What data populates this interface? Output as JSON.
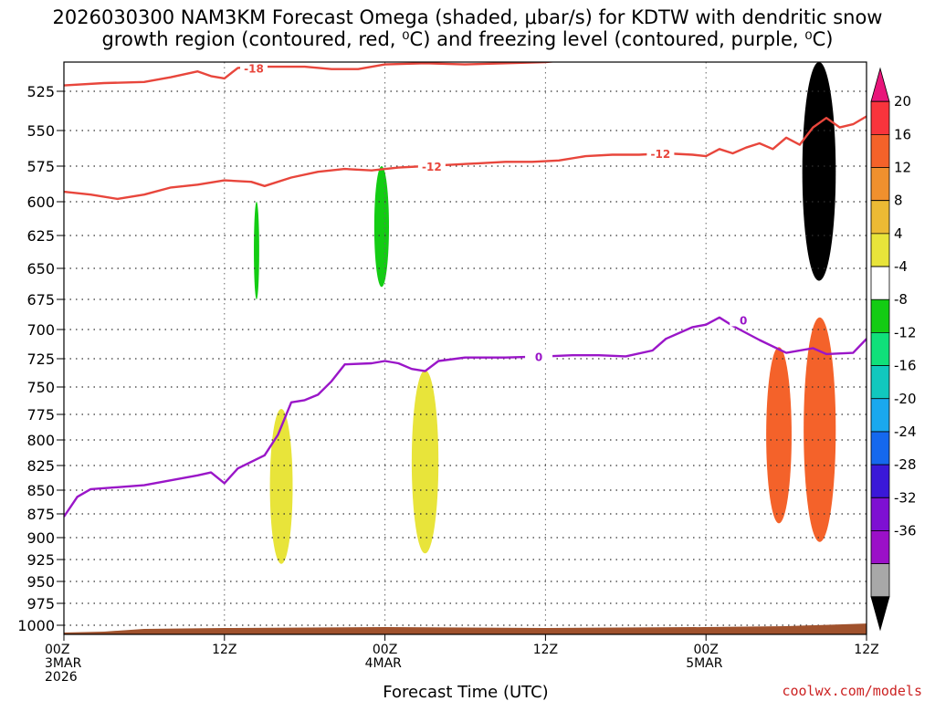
{
  "title": {
    "line1": "2026030300 NAM3KM Forecast Omega (shaded, μbar/s) for KDTW with dendritic snow",
    "line2": "growth region (contoured, red, ⁰C) and freezing level (contoured, purple, ⁰C)"
  },
  "credit": "coolwx.com/models",
  "colors": {
    "temp_contour": "#e8463c",
    "freezing_contour": "#9a16c8",
    "terrain": "#a0522d"
  },
  "chart_data": {
    "type": "heatmap",
    "xlabel": "Forecast Time (UTC)",
    "xlim": [
      0,
      60
    ],
    "x_ticks": [
      {
        "value": 0,
        "lines": [
          "00Z",
          "3MAR",
          "2026"
        ]
      },
      {
        "value": 12,
        "lines": [
          "12Z"
        ]
      },
      {
        "value": 24,
        "lines": [
          "00Z",
          "4MAR"
        ]
      },
      {
        "value": 36,
        "lines": [
          "12Z"
        ]
      },
      {
        "value": 48,
        "lines": [
          "00Z",
          "5MAR"
        ]
      },
      {
        "value": 60,
        "lines": [
          "12Z"
        ]
      }
    ],
    "y_ticks": [
      "525",
      "550",
      "575",
      "600",
      "625",
      "650",
      "675",
      "700",
      "725",
      "750",
      "775",
      "800",
      "825",
      "850",
      "875",
      "900",
      "925",
      "950",
      "975",
      "1000"
    ],
    "ylim_hpa": [
      500,
      1010
    ],
    "colorbar": {
      "labels": [
        "20",
        "16",
        "12",
        "8",
        "4",
        "-4",
        "-8",
        "-12",
        "-16",
        "-20",
        "-24",
        "-28",
        "-32",
        "-36"
      ],
      "colors": [
        "#e8157a",
        "#f8343c",
        "#f4622a",
        "#f0902e",
        "#ecba34",
        "#e8e43a",
        "#ffffff",
        "#13cc13",
        "#10e07a",
        "#11c8be",
        "#1aa8ee",
        "#1568ee",
        "#3a18d8",
        "#7e10d2",
        "#9b10c8",
        "#a8a8a8",
        "#000000"
      ]
    },
    "temp_contours": [
      {
        "label": "-18",
        "points": [
          [
            0,
            520
          ],
          [
            3,
            518
          ],
          [
            6,
            517
          ],
          [
            8,
            513
          ],
          [
            10,
            508
          ],
          [
            11,
            512
          ],
          [
            12,
            514
          ],
          [
            13,
            505
          ],
          [
            15,
            504
          ],
          [
            18,
            504
          ],
          [
            20,
            506
          ],
          [
            22,
            506
          ],
          [
            24,
            502
          ],
          [
            27,
            501
          ],
          [
            30,
            502
          ],
          [
            33,
            501
          ],
          [
            36,
            500
          ],
          [
            38,
            498
          ],
          [
            40,
            497
          ],
          [
            43,
            497
          ],
          [
            45,
            496
          ],
          [
            47,
            497
          ],
          [
            50,
            497
          ]
        ]
      },
      {
        "label": "-12",
        "points": [
          [
            0,
            593
          ],
          [
            2,
            595
          ],
          [
            4,
            598
          ],
          [
            6,
            595
          ],
          [
            8,
            590
          ],
          [
            10,
            588
          ],
          [
            12,
            585
          ],
          [
            14,
            586
          ],
          [
            15,
            589
          ],
          [
            17,
            583
          ],
          [
            19,
            579
          ],
          [
            21,
            577
          ],
          [
            23,
            578
          ],
          [
            25,
            576
          ],
          [
            27,
            575
          ],
          [
            29,
            574
          ],
          [
            31,
            573
          ],
          [
            33,
            572
          ],
          [
            35,
            572
          ],
          [
            37,
            571
          ],
          [
            39,
            568
          ],
          [
            41,
            567
          ],
          [
            43,
            567
          ],
          [
            45,
            566
          ],
          [
            47,
            567
          ],
          [
            48,
            568
          ],
          [
            49,
            563
          ],
          [
            50,
            566
          ],
          [
            51,
            562
          ],
          [
            52,
            559
          ],
          [
            53,
            563
          ],
          [
            54,
            555
          ],
          [
            55,
            560
          ],
          [
            56,
            548
          ],
          [
            57,
            542
          ],
          [
            58,
            548
          ],
          [
            59,
            546
          ],
          [
            60,
            541
          ]
        ]
      }
    ],
    "freezing_contour": {
      "label": "0",
      "points": [
        [
          0,
          878
        ],
        [
          1,
          857
        ],
        [
          2,
          849
        ],
        [
          4,
          847
        ],
        [
          6,
          845
        ],
        [
          8,
          840
        ],
        [
          10,
          835
        ],
        [
          11,
          832
        ],
        [
          12,
          843
        ],
        [
          13,
          828
        ],
        [
          15,
          815
        ],
        [
          16,
          795
        ],
        [
          17,
          764
        ],
        [
          18,
          762
        ],
        [
          19,
          757
        ],
        [
          20,
          745
        ],
        [
          21,
          730
        ],
        [
          23,
          729
        ],
        [
          24,
          727
        ],
        [
          25,
          729
        ],
        [
          26,
          734
        ],
        [
          27,
          736
        ],
        [
          28,
          727
        ],
        [
          30,
          724
        ],
        [
          33,
          724
        ],
        [
          36,
          723
        ],
        [
          38,
          722
        ],
        [
          40,
          722
        ],
        [
          42,
          723
        ],
        [
          44,
          718
        ],
        [
          45,
          708
        ],
        [
          47,
          698
        ],
        [
          48,
          696
        ],
        [
          49,
          690
        ],
        [
          50,
          697
        ],
        [
          52,
          709
        ],
        [
          54,
          720
        ],
        [
          56,
          716
        ],
        [
          57,
          721
        ],
        [
          59,
          720
        ],
        [
          60,
          708
        ]
      ]
    },
    "omega_regions": [
      {
        "value": 16,
        "t0": 52.5,
        "t1": 54.4,
        "p0": 715,
        "p1": 885
      },
      {
        "value": 14,
        "t0": 55.3,
        "t1": 57.7,
        "p0": 690,
        "p1": 905
      },
      {
        "value": -8,
        "t0": 14.2,
        "t1": 14.6,
        "p0": 600,
        "p1": 675
      },
      {
        "value": -8,
        "t0": 23.2,
        "t1": 24.3,
        "p0": 575,
        "p1": 665
      },
      {
        "value": 4,
        "t0": 15.4,
        "t1": 17.1,
        "p0": 770,
        "p1": 930
      },
      {
        "value": 4,
        "t0": 26.0,
        "t1": 28.0,
        "p0": 735,
        "p1": 918
      },
      {
        "value": -36,
        "t0": 55.2,
        "t1": 57.7,
        "p0": 500,
        "p1": 660
      }
    ],
    "terrain_surface_hpa": [
      [
        0,
        1008
      ],
      [
        3,
        1007
      ],
      [
        6,
        1004
      ],
      [
        12,
        1003
      ],
      [
        24,
        1002
      ],
      [
        36,
        1003
      ],
      [
        48,
        1002
      ],
      [
        54,
        1001
      ],
      [
        60,
        998
      ]
    ]
  }
}
